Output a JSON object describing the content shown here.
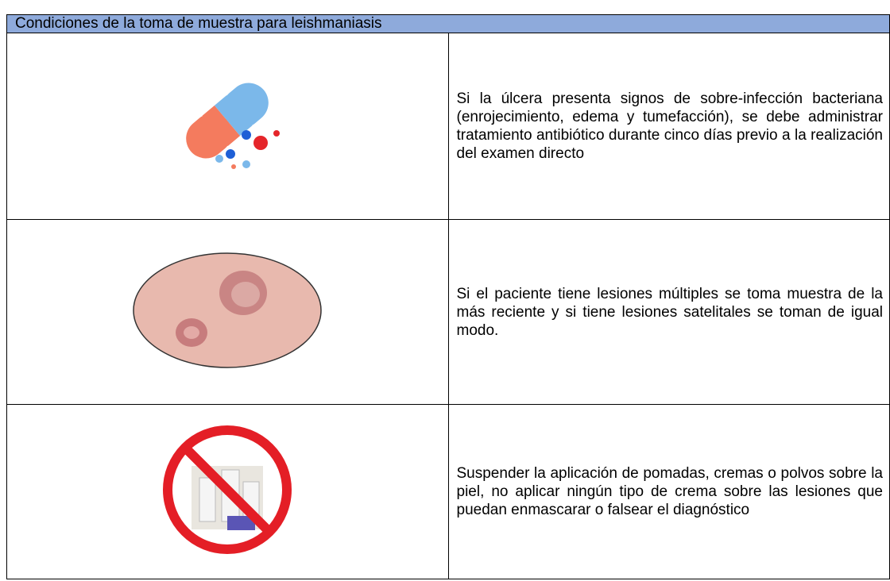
{
  "header": {
    "title": "Condiciones de la toma de muestra para leishmaniasis"
  },
  "table": {
    "rows": [
      [
        "Si la úlcera presenta signos de sobre-infección bacteriana (enrojecimiento, edema y tumefacción), se debe administrar tratamiento antibiótico durante cinco días previo a la realización del examen directo"
      ],
      [
        "Si el paciente tiene lesiones múltiples se toma muestra de la más reciente y si tiene lesiones satelitales se toman de igual modo."
      ],
      [
        "Suspender la aplicación de pomadas, cremas o polvos sobre la piel, no aplicar ningún tipo de crema sobre las lesiones que puedan enmascarar o falsear el diagnóstico"
      ]
    ]
  }
}
